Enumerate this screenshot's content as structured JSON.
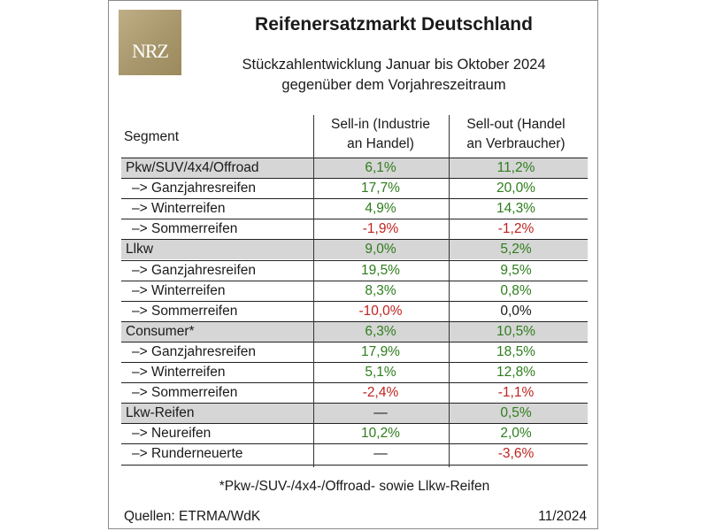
{
  "logo_text": "NRZ",
  "title": "Reifenersatzmarkt Deutschland",
  "subtitle_line1": "Stückzahlentwicklung Januar bis Oktober 2024",
  "subtitle_line2": "gegenüber dem Vorjahreszeitraum",
  "table": {
    "header": {
      "segment": "Segment",
      "col1_line1": "Sell-in (Industrie",
      "col1_line2": "an Handel)",
      "col2_line1": "Sell-out (Handel",
      "col2_line2": "an Verbraucher)"
    },
    "rows": [
      {
        "label": "Pkw/SUV/4x4/Offroad",
        "sub": false,
        "shade": true,
        "sell_in": "6,1%",
        "sell_out": "11,2%"
      },
      {
        "label": "–> Ganzjahresreifen",
        "sub": true,
        "shade": false,
        "sell_in": "17,7%",
        "sell_out": "20,0%"
      },
      {
        "label": "–> Winterreifen",
        "sub": true,
        "shade": false,
        "sell_in": "4,9%",
        "sell_out": "14,3%"
      },
      {
        "label": "–> Sommerreifen",
        "sub": true,
        "shade": false,
        "sell_in": "-1,9%",
        "sell_out": "-1,2%"
      },
      {
        "label": "Llkw",
        "sub": false,
        "shade": true,
        "sell_in": "9,0%",
        "sell_out": "5,2%"
      },
      {
        "label": "–> Ganzjahresreifen",
        "sub": true,
        "shade": false,
        "sell_in": "19,5%",
        "sell_out": "9,5%"
      },
      {
        "label": "–> Winterreifen",
        "sub": true,
        "shade": false,
        "sell_in": "8,3%",
        "sell_out": "0,8%"
      },
      {
        "label": "–> Sommerreifen",
        "sub": true,
        "shade": false,
        "sell_in": "-10,0%",
        "sell_out": "0,0%"
      },
      {
        "label": "Consumer*",
        "sub": false,
        "shade": true,
        "sell_in": "6,3%",
        "sell_out": "10,5%"
      },
      {
        "label": "–> Ganzjahresreifen",
        "sub": true,
        "shade": false,
        "sell_in": "17,9%",
        "sell_out": "18,5%"
      },
      {
        "label": "–> Winterreifen",
        "sub": true,
        "shade": false,
        "sell_in": "5,1%",
        "sell_out": "12,8%"
      },
      {
        "label": "–> Sommerreifen",
        "sub": true,
        "shade": false,
        "sell_in": "-2,4%",
        "sell_out": "-1,1%"
      },
      {
        "label": "Lkw-Reifen",
        "sub": false,
        "shade": true,
        "sell_in": "—",
        "sell_out": "0,5%"
      },
      {
        "label": "–> Neureifen",
        "sub": true,
        "shade": false,
        "sell_in": "10,2%",
        "sell_out": "2,0%"
      },
      {
        "label": "–> Runderneuerte",
        "sub": true,
        "shade": false,
        "sell_in": "—",
        "sell_out": "-3,6%"
      }
    ]
  },
  "colors": {
    "positive": "#2e7d1c",
    "negative": "#c0221e",
    "shade": "#d6d6d6"
  },
  "footnote": "*Pkw-/SUV-/4x4-/Offroad- sowie Llkw-Reifen",
  "source": "Quellen: ETRMA/WdK",
  "date": "11/2024"
}
